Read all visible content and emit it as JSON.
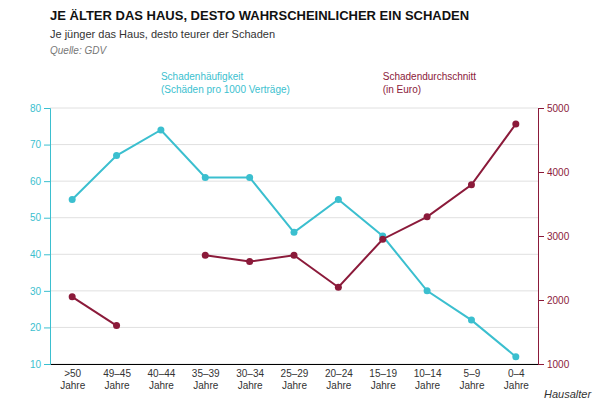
{
  "chart_data": {
    "type": "line",
    "title": "JE ÄLTER DAS HAUS, DESTO WAHRSCHEINLICHER EIN SCHADEN",
    "subtitle": "Je jünger das Haus, desto teurer der Schaden",
    "annotations": [
      "Quelle: GDV"
    ],
    "x_label": "Hausalter",
    "categories": [
      ">50\nJahre",
      "49–45\nJahre",
      "40–44\nJahre",
      "35–39\nJahre",
      "30–34\nJahre",
      "25–29\nJahre",
      "20–24\nJahre",
      "15–19\nJahre",
      "10–14\nJahre",
      "5–9\nJahre",
      "0–4\nJahre"
    ],
    "series": [
      {
        "name": "Schadenhäufigkeit\n(Schäden pro 1000 Verträge)",
        "color": "#3bbfcf",
        "values": [
          55,
          67,
          74,
          61,
          61,
          46,
          55,
          45,
          30,
          22,
          12
        ]
      },
      {
        "name": "Schadendurchschnitt\n(in Euro)",
        "color": "#8b1a3a",
        "axis": "y2",
        "values": [
          2050,
          1600,
          null,
          2700,
          2600,
          2700,
          2200,
          2950,
          3300,
          3800,
          4750
        ]
      }
    ],
    "ylim": [
      10,
      80
    ],
    "yticks": [
      10,
      20,
      30,
      40,
      50,
      60,
      70,
      80
    ],
    "y2lim": [
      1000,
      5000
    ],
    "y2ticks": [
      1000,
      2000,
      3000,
      4000,
      5000
    ],
    "grid": true,
    "marker": "circle"
  }
}
